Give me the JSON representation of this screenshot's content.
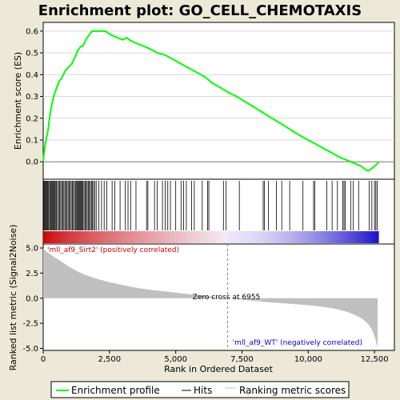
{
  "chart_data": {
    "title": "Enrichment plot: GO_CELL_CHEMOTAXIS",
    "type": "line",
    "x_axis": {
      "label": "Rank in Ordered Dataset",
      "lim": [
        0,
        13250
      ],
      "ticks": [
        0,
        2500,
        5000,
        7500,
        10000,
        12500
      ],
      "tick_labels": [
        "0",
        "2,500",
        "5,000",
        "7,500",
        "10,000",
        "12,500"
      ]
    },
    "es_panel": {
      "ylabel": "Enrichment score (ES)",
      "ylim": [
        -0.08,
        0.64
      ],
      "yticks": [
        0.0,
        0.1,
        0.2,
        0.3,
        0.4,
        0.5,
        0.6
      ],
      "ytick_labels": [
        "0.0",
        "0.1",
        "0.2",
        "0.3",
        "0.4",
        "0.5",
        "0.6"
      ],
      "series": {
        "name": "Enrichment profile",
        "color": "#00ff00",
        "x": [
          0,
          40,
          80,
          120,
          160,
          200,
          260,
          320,
          380,
          420,
          480,
          540,
          600,
          680,
          760,
          840,
          920,
          1000,
          1080,
          1160,
          1240,
          1300,
          1360,
          1420,
          1480,
          1540,
          1600,
          1660,
          1720,
          1780,
          1840,
          1900,
          1960,
          2050,
          2150,
          2250,
          2350,
          2450,
          2600,
          2800,
          3000,
          3150,
          3250,
          3400,
          3600,
          3800,
          4000,
          4300,
          4600,
          4900,
          5200,
          5500,
          5800,
          6100,
          6400,
          6700,
          6955,
          7300,
          7700,
          8100,
          8500,
          8900,
          9300,
          9700,
          10000,
          10300,
          10600,
          10900,
          11200,
          11400,
          11600,
          11800,
          12000,
          12100,
          12200,
          12300,
          12400,
          12500,
          12600,
          12650
        ],
        "y": [
          0.0,
          0.05,
          0.08,
          0.11,
          0.13,
          0.16,
          0.22,
          0.26,
          0.29,
          0.31,
          0.33,
          0.35,
          0.37,
          0.38,
          0.4,
          0.42,
          0.43,
          0.44,
          0.45,
          0.47,
          0.49,
          0.51,
          0.52,
          0.53,
          0.53,
          0.54,
          0.56,
          0.57,
          0.58,
          0.59,
          0.6,
          0.6,
          0.6,
          0.6,
          0.6,
          0.6,
          0.6,
          0.59,
          0.58,
          0.57,
          0.56,
          0.57,
          0.56,
          0.55,
          0.54,
          0.53,
          0.52,
          0.5,
          0.49,
          0.47,
          0.45,
          0.43,
          0.41,
          0.39,
          0.36,
          0.34,
          0.32,
          0.3,
          0.27,
          0.24,
          0.21,
          0.18,
          0.15,
          0.12,
          0.1,
          0.08,
          0.06,
          0.04,
          0.02,
          0.01,
          0.0,
          -0.01,
          -0.02,
          -0.03,
          -0.04,
          -0.04,
          -0.03,
          -0.02,
          -0.01,
          0.0
        ]
      }
    },
    "hits_panel": {
      "name": "Hits",
      "hit_ranks": [
        10,
        30,
        60,
        90,
        120,
        150,
        180,
        210,
        250,
        280,
        310,
        340,
        370,
        400,
        430,
        460,
        500,
        540,
        580,
        620,
        660,
        700,
        740,
        780,
        820,
        860,
        900,
        940,
        980,
        1020,
        1060,
        1100,
        1140,
        1180,
        1220,
        1260,
        1290,
        1320,
        1350,
        1380,
        1410,
        1440,
        1470,
        1500,
        1540,
        1580,
        1620,
        1660,
        1700,
        1740,
        1780,
        1820,
        1860,
        1900,
        1950,
        2000,
        2100,
        2200,
        2300,
        2400,
        2600,
        2700,
        2900,
        3100,
        3200,
        3300,
        3500,
        3900,
        3950,
        4200,
        4300,
        4500,
        4600,
        4700,
        4800,
        5000,
        5200,
        5300,
        5400,
        5600,
        5700,
        6000,
        6200,
        6250,
        6800,
        6900,
        7400,
        8300,
        8350,
        8500,
        8800,
        9000,
        9300,
        9800,
        10200,
        10250,
        10700,
        10900,
        11100,
        11300,
        11350,
        11400,
        11600,
        11700,
        11900,
        12300,
        12400,
        12500,
        12550,
        12600
      ]
    },
    "metric_panel": {
      "ylabel": "Ranked list metric (Signal2Noise)",
      "ylim": [
        -5.2,
        5.4
      ],
      "yticks": [
        -5.0,
        -2.5,
        0.0,
        2.5,
        5.0
      ],
      "ytick_labels": [
        "-5.0",
        "-2.5",
        "0.0",
        "2.5",
        "5.0"
      ],
      "fill_color": "#c0c0c0",
      "x": [
        0,
        100,
        300,
        600,
        1000,
        1500,
        2000,
        2500,
        3000,
        3500,
        4000,
        4500,
        5000,
        5500,
        6000,
        6500,
        6955,
        7500,
        8000,
        8500,
        9000,
        9500,
        10000,
        10500,
        11000,
        11400,
        11700,
        12000,
        12200,
        12350,
        12450,
        12550,
        12620
      ],
      "y": [
        5.0,
        4.7,
        4.3,
        3.8,
        3.1,
        2.4,
        1.95,
        1.6,
        1.3,
        1.05,
        0.85,
        0.7,
        0.55,
        0.4,
        0.25,
        0.12,
        0.0,
        -0.15,
        -0.28,
        -0.4,
        -0.5,
        -0.6,
        -0.7,
        -0.85,
        -1.05,
        -1.3,
        -1.6,
        -2.0,
        -2.4,
        -2.9,
        -3.4,
        -4.2,
        -5.0
      ],
      "zero_cross": {
        "rank": 6955,
        "label": "Zero cross at 6955"
      },
      "pos_label": "'mll_af9_Sirt2' (positively correlated)",
      "neg_label": "'mll_af9_WT' (negatively correlated)",
      "pos_color": "#cc0000",
      "neg_color": "#0000cc"
    },
    "legend": {
      "items": [
        {
          "label": "Enrichment profile",
          "color": "#00ff00"
        },
        {
          "label": "Hits",
          "color": "#000000"
        },
        {
          "label": "Ranking metric scores",
          "color": "#c0c0c0"
        }
      ]
    }
  }
}
